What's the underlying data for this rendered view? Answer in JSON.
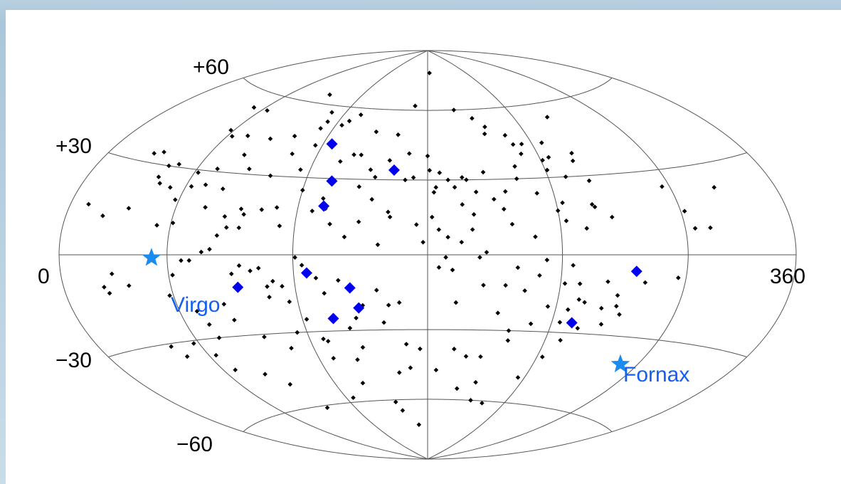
{
  "chart_data": {
    "type": "scatter",
    "projection": "aitoff-hammer",
    "title": "",
    "xlabel": "",
    "ylabel": "",
    "xlim": [
      0,
      360
    ],
    "ylim": [
      -90,
      90
    ],
    "grid": true,
    "tick_labels": {
      "lat": [
        {
          "value": 60,
          "label": "+60"
        },
        {
          "value": 30,
          "label": "+30"
        },
        {
          "value": -30,
          "label": "−30"
        },
        {
          "value": -60,
          "label": "−60"
        }
      ],
      "lon": [
        {
          "value": 0,
          "label": "0"
        },
        {
          "value": 360,
          "label": "360"
        }
      ]
    },
    "series": [
      {
        "marker": "small-diamond",
        "color": "#000000",
        "points": [
          [
            52,
            54
          ],
          [
            64,
            54
          ],
          [
            110,
            57
          ],
          [
            113,
            53
          ],
          [
            112,
            50
          ],
          [
            127,
            54
          ],
          [
            170,
            62
          ],
          [
            183,
            78
          ],
          [
            92,
            64
          ],
          [
            58,
            45
          ],
          [
            63,
            43
          ],
          [
            33,
            34
          ],
          [
            28,
            33
          ],
          [
            72,
            44
          ],
          [
            87,
            44
          ],
          [
            100,
            46
          ],
          [
            106,
            39
          ],
          [
            116,
            43
          ],
          [
            134,
            37
          ],
          [
            151,
            34
          ],
          [
            154,
            31
          ],
          [
            140,
            40
          ],
          [
            162,
            49
          ],
          [
            170,
            41
          ],
          [
            180,
            40
          ],
          [
            181,
            34
          ],
          [
            173,
            31
          ],
          [
            200,
            60
          ],
          [
            211,
            56
          ],
          [
            217,
            52
          ],
          [
            215,
            49
          ],
          [
            227,
            48
          ],
          [
            229,
            44
          ],
          [
            234,
            44
          ],
          [
            246,
            44
          ],
          [
            263,
            54
          ],
          [
            241,
            37
          ],
          [
            245,
            38
          ],
          [
            224,
            30
          ],
          [
            225,
            35
          ],
          [
            241,
            33
          ],
          [
            259,
            39
          ],
          [
            257,
            36
          ],
          [
            199,
            30
          ],
          [
            203,
            25
          ],
          [
            208,
            33
          ],
          [
            197,
            31
          ],
          [
            193,
            27
          ],
          [
            217,
            25
          ],
          [
            211,
            22
          ],
          [
            215,
            18
          ],
          [
            232,
            24
          ],
          [
            249,
            30
          ],
          [
            260,
            28
          ],
          [
            257,
            19
          ],
          [
            258,
            18
          ],
          [
            265,
            14
          ],
          [
            252,
            10
          ],
          [
            243,
            13
          ],
          [
            228,
            7
          ],
          [
            218,
            12
          ],
          [
            196,
            20
          ],
          [
            201,
            16
          ],
          [
            200,
            10
          ],
          [
            195,
            5
          ],
          [
            185,
            10
          ],
          [
            189,
            7
          ],
          [
            182,
            15
          ],
          [
            175,
            12
          ],
          [
            163,
            15
          ],
          [
            158,
            4
          ],
          [
            149,
            13
          ],
          [
            143,
            7
          ],
          [
            136,
            12
          ],
          [
            133,
            18
          ],
          [
            127,
            17
          ],
          [
            113,
            11
          ],
          [
            110,
            18
          ],
          [
            103,
            17
          ],
          [
            93,
            17
          ],
          [
            80,
            24
          ],
          [
            70,
            25
          ],
          [
            63,
            24
          ],
          [
            52,
            23
          ],
          [
            45,
            24
          ],
          [
            42,
            26
          ],
          [
            58,
            19
          ],
          [
            53,
            10
          ],
          [
            61,
            11
          ],
          [
            35,
            15
          ],
          [
            22,
            12
          ],
          [
            11,
            15
          ],
          [
            75,
            17
          ],
          [
            86,
            14
          ],
          [
            95,
            15
          ],
          [
            94,
            10
          ],
          [
            88,
            10
          ],
          [
            84,
            7
          ],
          [
            81,
            2
          ],
          [
            77,
            1
          ],
          [
            67,
            -2
          ],
          [
            71,
            -2
          ],
          [
            95,
            -4
          ],
          [
            91,
            -7
          ],
          [
            100,
            -6
          ],
          [
            104,
            -5
          ],
          [
            110,
            -10
          ],
          [
            107,
            -12
          ],
          [
            114,
            -12
          ],
          [
            124,
            -4
          ],
          [
            121,
            -1
          ],
          [
            130,
            -9
          ],
          [
            133,
            -15
          ],
          [
            140,
            -10
          ],
          [
            157,
            -14
          ],
          [
            150,
            -20
          ],
          [
            162,
            -20
          ],
          [
            167,
            -19
          ],
          [
            185,
            -5
          ],
          [
            191,
            -6
          ],
          [
            193,
            -19
          ],
          [
            205,
            -12
          ],
          [
            215,
            -12
          ],
          [
            213,
            -23
          ],
          [
            224,
            -14
          ],
          [
            236,
            -20
          ],
          [
            242,
            -11
          ],
          [
            249,
            -11
          ],
          [
            253,
            -18
          ],
          [
            262,
            -10
          ],
          [
            280,
            -10
          ],
          [
            62,
            -7
          ],
          [
            58,
            -14
          ],
          [
            69,
            -20
          ],
          [
            72,
            -25
          ],
          [
            73,
            -30
          ],
          [
            84,
            -18
          ],
          [
            86,
            -24
          ],
          [
            97,
            -31
          ],
          [
            108,
            -36
          ],
          [
            122,
            -25
          ],
          [
            115,
            -30
          ],
          [
            142,
            -29
          ],
          [
            146,
            -25
          ],
          [
            159,
            -27
          ],
          [
            146,
            -37
          ],
          [
            128,
            -41
          ],
          [
            141,
            -42
          ],
          [
            169,
            -36
          ],
          [
            176,
            -38
          ],
          [
            170,
            -46
          ],
          [
            185,
            -47
          ],
          [
            194,
            -38
          ],
          [
            201,
            -41
          ],
          [
            209,
            -41
          ],
          [
            221,
            -34
          ],
          [
            220,
            -30
          ],
          [
            230,
            -27
          ],
          [
            244,
            -26
          ],
          [
            246,
            -21
          ],
          [
            250,
            -17
          ],
          [
            269,
            -19
          ],
          [
            272,
            -22
          ],
          [
            265,
            -26
          ],
          [
            43,
            -31
          ],
          [
            47,
            -35
          ],
          [
            57,
            -31
          ],
          [
            64,
            -36
          ],
          [
            67,
            -42
          ],
          [
            82,
            -45
          ],
          [
            91,
            -50
          ],
          [
            98,
            -61
          ],
          [
            125,
            -58
          ],
          [
            138,
            -52
          ],
          [
            155,
            -61
          ],
          [
            158,
            -65
          ],
          [
            170,
            -72
          ],
          [
            163,
            -48
          ],
          [
            200,
            -55
          ],
          [
            211,
            -52
          ],
          [
            213,
            -60
          ],
          [
            223,
            -61
          ],
          [
            236,
            -49
          ],
          [
            243,
            -40
          ],
          [
            248,
            -33
          ],
          [
            254,
            -28
          ],
          [
            262,
            -20
          ],
          [
            268,
            -15
          ],
          [
            296,
            -8
          ],
          [
            296,
            24
          ],
          [
            302,
            15
          ],
          [
            305,
            9
          ],
          [
            313,
            9
          ],
          [
            324,
            22
          ],
          [
            107,
            -16
          ],
          [
            116,
            -18
          ],
          [
            127,
            -33
          ],
          [
            129,
            -34
          ],
          [
            24,
            -10
          ],
          [
            26,
            -12
          ],
          [
            30,
            -6
          ],
          [
            38,
            -10
          ],
          [
            154,
            22
          ],
          [
            120,
            25
          ],
          [
            115,
            33
          ],
          [
            131,
            22
          ],
          [
            183,
            25
          ],
          [
            184,
            27
          ],
          [
            186,
            33
          ],
          [
            190,
            30
          ],
          [
            169,
            30
          ],
          [
            147,
            27
          ],
          [
            144,
            40
          ],
          [
            231,
            40
          ],
          [
            243,
            20
          ],
          [
            240,
            17
          ],
          [
            124,
            52
          ],
          [
            132,
            57
          ],
          [
            148,
            50
          ],
          [
            160,
            38
          ],
          [
            162,
            17
          ],
          [
            178,
            5
          ],
          [
            188,
            -1
          ],
          [
            203,
            -1
          ],
          [
            206,
            1
          ],
          [
            233,
            -2
          ],
          [
            245,
            -4
          ],
          [
            220,
            -5
          ],
          [
            230,
            -8
          ],
          [
            101,
            30
          ],
          [
            88,
            32
          ],
          [
            80,
            37
          ],
          [
            71,
            31
          ],
          [
            62,
            29
          ],
          [
            48,
            31
          ],
          [
            43,
            30
          ]
        ]
      },
      {
        "marker": "large-diamond",
        "color": "#0000ee",
        "points": [
          [
            125,
            44
          ],
          [
            163,
            34
          ],
          [
            133,
            29
          ],
          [
            132,
            19
          ],
          [
            126,
            -7
          ],
          [
            93,
            -12
          ],
          [
            145,
            -13
          ],
          [
            148,
            -21
          ],
          [
            135,
            -25
          ],
          [
            250,
            -26
          ],
          [
            275,
            -6
          ]
        ]
      },
      {
        "marker": "star",
        "color": "#1a8cf0",
        "points": [
          [
            52,
            -1
          ],
          [
            290,
            -40
          ]
        ]
      }
    ],
    "annotations": [
      {
        "text": "Virgo",
        "color": "#1560ee"
      },
      {
        "text": "Fornax",
        "color": "#1560ee"
      }
    ]
  }
}
